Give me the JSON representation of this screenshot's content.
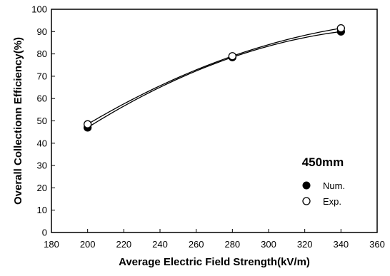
{
  "chart_data": {
    "type": "line",
    "xlabel": "Average Electric Field Strength(kV/m)",
    "ylabel": "Overall Collectionn Efficiency(%)",
    "xlim": [
      180,
      360
    ],
    "ylim": [
      0,
      100
    ],
    "xticks": [
      180,
      200,
      220,
      240,
      260,
      280,
      300,
      320,
      340,
      360
    ],
    "yticks": [
      0,
      10,
      20,
      30,
      40,
      50,
      60,
      70,
      80,
      90,
      100
    ],
    "grid": false,
    "legend": {
      "title": "450mm",
      "placement": "bottom-right"
    },
    "series": [
      {
        "name": "Num.",
        "marker": "filled-circle",
        "x": [
          200,
          280,
          340
        ],
        "y": [
          47,
          78.5,
          90
        ]
      },
      {
        "name": "Exp.",
        "marker": "open-circle",
        "x": [
          200,
          280,
          340
        ],
        "y": [
          48.5,
          79,
          91.5
        ]
      }
    ]
  }
}
